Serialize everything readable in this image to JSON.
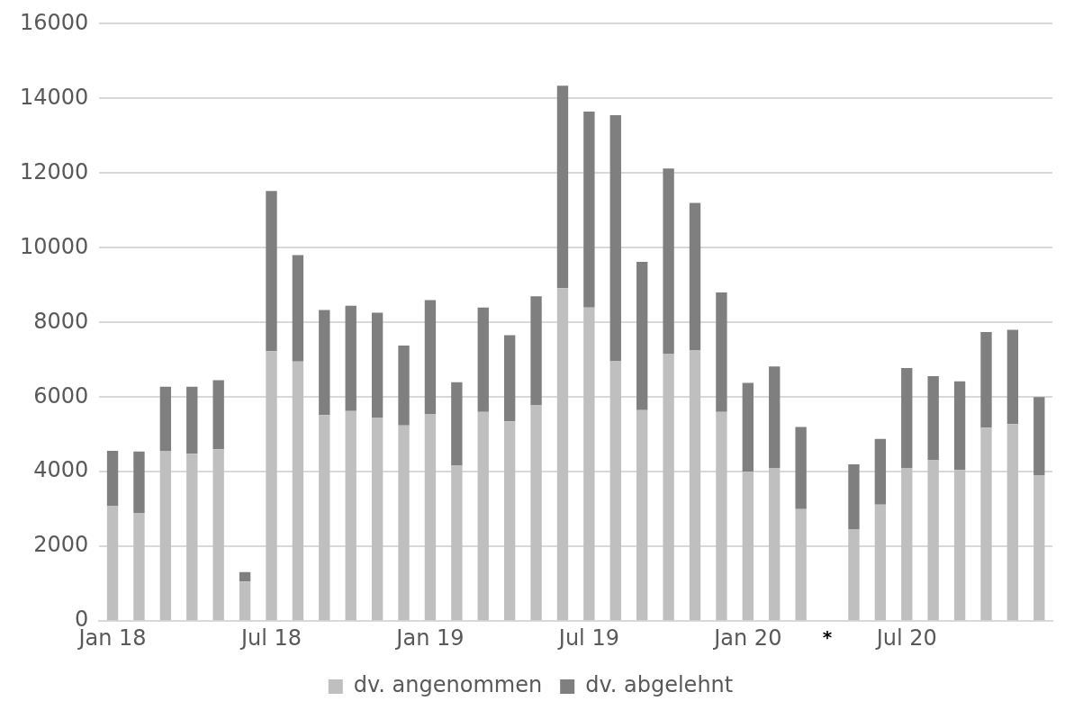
{
  "chart_data": {
    "type": "bar",
    "stacked": true,
    "categories": [
      "Jan 18",
      null,
      null,
      null,
      null,
      null,
      "Jul 18",
      null,
      null,
      null,
      null,
      null,
      "Jan 19",
      null,
      null,
      null,
      null,
      null,
      "Jul 19",
      null,
      null,
      null,
      null,
      null,
      "Jan 20",
      null,
      null,
      null,
      null,
      null,
      "Jul 20",
      null,
      null,
      null,
      null,
      null
    ],
    "series": [
      {
        "name": "dv. angenommen",
        "color": "#bfbfbf",
        "values": [
          3080,
          2900,
          4560,
          4480,
          4600,
          1060,
          7230,
          6950,
          5520,
          5630,
          5450,
          5240,
          5550,
          4160,
          5600,
          5350,
          5780,
          8920,
          8400,
          6960,
          5650,
          7150,
          7250,
          5600,
          4000,
          4100,
          3000,
          null,
          2450,
          3120,
          4100,
          4320,
          4050,
          5180,
          5280,
          3900
        ]
      },
      {
        "name": "dv. abgelehnt",
        "color": "#7f7f7f",
        "values": [
          1480,
          1640,
          1720,
          1800,
          1850,
          250,
          4290,
          2850,
          2810,
          2820,
          2810,
          2140,
          3050,
          2240,
          2800,
          2310,
          2920,
          5420,
          5250,
          6590,
          3970,
          4970,
          3950,
          3200,
          2380,
          2720,
          2200,
          null,
          1750,
          1760,
          2680,
          2240,
          2370,
          2560,
          2520,
          2100
        ]
      }
    ],
    "ylim": [
      0,
      16000
    ],
    "yticks": [
      0,
      2000,
      4000,
      6000,
      8000,
      10000,
      12000,
      14000,
      16000
    ],
    "grid": "y",
    "legend": "bottom",
    "annotations": [
      "*"
    ]
  }
}
